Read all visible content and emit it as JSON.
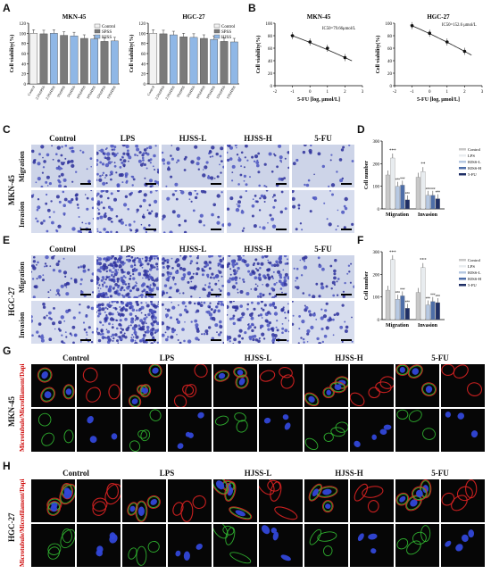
{
  "panel_letters": [
    "A",
    "B",
    "C",
    "D",
    "E",
    "F",
    "G",
    "H"
  ],
  "panelA": {
    "ylabel": "Cell viability(%)",
    "legend": [
      "Control",
      "SPSS",
      "HJSS"
    ],
    "legend_colors": [
      "#f2f2f2",
      "#7a7a7a",
      "#8fb7e6"
    ],
    "charts": [
      {
        "title": "MKN-45",
        "categories": [
          "Control",
          "2.5%SPSS",
          "2.5%HJSS",
          "5%SPSS",
          "5%HJSS",
          "10%SPSS",
          "10%HJSS",
          "15%SPSS",
          "15%HJSS"
        ],
        "values": [
          100,
          99,
          100,
          96,
          95,
          90,
          89,
          84,
          85
        ]
      },
      {
        "title": "HGC-27",
        "categories": [
          "Control",
          "2.5%SPSS",
          "2.5%HJSS",
          "5%SPSS",
          "5%HJSS",
          "10%SPSS",
          "10%HJSS",
          "15%SPSS",
          "15%HJSS"
        ],
        "values": [
          100,
          99,
          97,
          93,
          92,
          90,
          88,
          84,
          83
        ]
      }
    ],
    "yticks": [
      "0",
      "20",
      "40",
      "60",
      "80",
      "100",
      "120"
    ]
  },
  "panelB": {
    "ylabel": "Cell viability(%)",
    "xlabel": "5-FU [log, μmol/L]",
    "xticks": [
      "-2",
      "-1",
      "0",
      "1",
      "2",
      "3"
    ],
    "yticks": [
      "0",
      "20",
      "40",
      "60",
      "80",
      "100"
    ],
    "charts": [
      {
        "title": "MKN-45",
        "ic50": "IC50=79.66μmol/L",
        "x": [
          -1,
          0,
          1,
          2
        ],
        "y": [
          80,
          70,
          60,
          45
        ]
      },
      {
        "title": "HGC-27",
        "ic50": "IC50=152.6 μmol/L",
        "x": [
          -1,
          0,
          1,
          2
        ],
        "y": [
          96,
          84,
          70,
          55
        ]
      }
    ]
  },
  "groups": [
    "Control",
    "LPS",
    "HJSS-L",
    "HJSS-H",
    "5-FU"
  ],
  "panelC": {
    "cell_line": "MKN-45",
    "rows": [
      "Migration",
      "Invasion"
    ]
  },
  "panelE": {
    "cell_line": "HGC-27",
    "rows": [
      "Migration",
      "Invasion"
    ]
  },
  "panelD": {
    "ylabel": "Cell number",
    "legend": [
      "Control",
      "LPS",
      "HJSS-L",
      "HJSS-H",
      "5-FU"
    ],
    "colors": [
      "#c8c8c8",
      "#e8ecef",
      "#b7c9e2",
      "#4e6ea8",
      "#1f2f66"
    ],
    "categories": [
      "Migration",
      "Invasion"
    ],
    "values": [
      [
        150,
        225,
        100,
        105,
        40
      ],
      [
        140,
        165,
        60,
        60,
        45
      ]
    ],
    "marks": [
      "***",
      "###",
      "###",
      "###",
      "**",
      "###",
      "###",
      "###"
    ],
    "yticks": [
      "0",
      "100",
      "200",
      "300"
    ]
  },
  "panelF": {
    "ylabel": "Cell number",
    "legend": [
      "Control",
      "LPS",
      "HJSS-L",
      "HJSS-H",
      "5-FU"
    ],
    "colors": [
      "#c8c8c8",
      "#e8ecef",
      "#b7c9e2",
      "#4e6ea8",
      "#1f2f66"
    ],
    "categories": [
      "Migration",
      "Invasion"
    ],
    "values": [
      [
        130,
        265,
        90,
        105,
        50
      ],
      [
        120,
        230,
        65,
        80,
        75
      ]
    ],
    "marks": [
      "***",
      "###",
      "###",
      "###",
      "***",
      "###",
      "###",
      "###"
    ],
    "yticks": [
      "0",
      "100",
      "200",
      "300"
    ]
  },
  "panelG": {
    "cell_line": "MKN-45",
    "stain": "Microtubule/Microfilament/Dapi"
  },
  "panelH": {
    "cell_line": "HGC-27",
    "stain": "Microtubule/Microfilament/Dapi"
  }
}
